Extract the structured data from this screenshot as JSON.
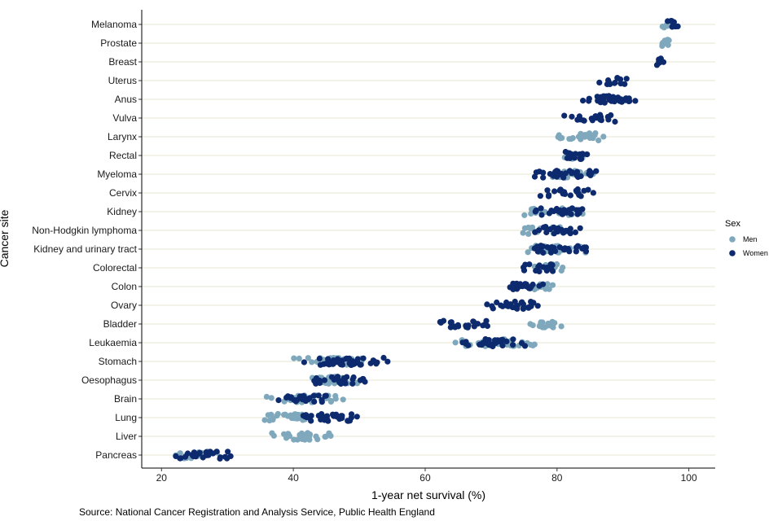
{
  "chart_data": {
    "type": "scatter",
    "xlabel": "1-year net survival (%)",
    "ylabel": "Cancer site",
    "caption": "Source: National Cancer Registration and Analysis Service, Public Health England",
    "xlim": [
      17,
      104
    ],
    "xticks": [
      20,
      40,
      60,
      80,
      100
    ],
    "grid": "horizontal",
    "legend": {
      "title": "Sex",
      "position": "right",
      "entries": [
        "Men",
        "Women"
      ]
    },
    "colors": {
      "Men": "#7fa8bd",
      "Women": "#0d2a6e",
      "grid": "#e5e5d3",
      "axis": "#000000"
    },
    "categories": [
      "Melanoma",
      "Prostate",
      "Breast",
      "Uterus",
      "Anus",
      "Vulva",
      "Larynx",
      "Rectal",
      "Myeloma",
      "Cervix",
      "Kidney",
      "Non-Hodgkin lymphoma",
      "Kidney and urinary tract",
      "Colorectal",
      "Colon",
      "Ovary",
      "Bladder",
      "Leukaemia",
      "Stomach",
      "Oesophagus",
      "Brain",
      "Lung",
      "Liver",
      "Pancreas"
    ],
    "series": [
      {
        "name": "Men",
        "ranges": {
          "Melanoma": [
            95.5,
            97.8
          ],
          "Prostate": [
            95.2,
            97.5
          ],
          "Larynx": [
            79.0,
            88.0
          ],
          "Rectal": [
            80.5,
            86.0
          ],
          "Myeloma": [
            77.5,
            86.5
          ],
          "Kidney": [
            74.5,
            85.0
          ],
          "Non-Hodgkin lymphoma": [
            74.5,
            83.0
          ],
          "Kidney and urinary tract": [
            74.0,
            85.0
          ],
          "Colorectal": [
            76.0,
            82.0
          ],
          "Colon": [
            74.5,
            80.0
          ],
          "Bladder": [
            75.0,
            81.0
          ],
          "Leukaemia": [
            64.5,
            78.0
          ],
          "Stomach": [
            40.0,
            53.0
          ],
          "Oesophagus": [
            41.5,
            51.0
          ],
          "Brain": [
            35.0,
            48.0
          ],
          "Lung": [
            34.0,
            44.0
          ],
          "Liver": [
            36.0,
            46.5
          ],
          "Pancreas": [
            20.5,
            29.5
          ]
        }
      },
      {
        "name": "Women",
        "ranges": {
          "Melanoma": [
            96.5,
            99.0
          ],
          "Breast": [
            95.0,
            96.5
          ],
          "Uterus": [
            86.0,
            91.0
          ],
          "Anus": [
            82.0,
            93.5
          ],
          "Vulva": [
            81.0,
            90.0
          ],
          "Rectal": [
            80.0,
            86.0
          ],
          "Myeloma": [
            75.5,
            87.0
          ],
          "Cervix": [
            77.0,
            86.0
          ],
          "Kidney": [
            75.5,
            86.0
          ],
          "Non-Hodgkin lymphoma": [
            76.0,
            84.0
          ],
          "Kidney and urinary tract": [
            74.5,
            85.5
          ],
          "Colorectal": [
            74.5,
            80.5
          ],
          "Colon": [
            71.5,
            79.0
          ],
          "Ovary": [
            68.0,
            78.5
          ],
          "Bladder": [
            62.0,
            70.5
          ],
          "Leukaemia": [
            64.0,
            76.0
          ],
          "Stomach": [
            40.5,
            55.5
          ],
          "Oesophagus": [
            40.5,
            52.0
          ],
          "Brain": [
            36.0,
            46.0
          ],
          "Lung": [
            38.0,
            50.5
          ],
          "Pancreas": [
            21.0,
            31.0
          ]
        }
      }
    ]
  }
}
